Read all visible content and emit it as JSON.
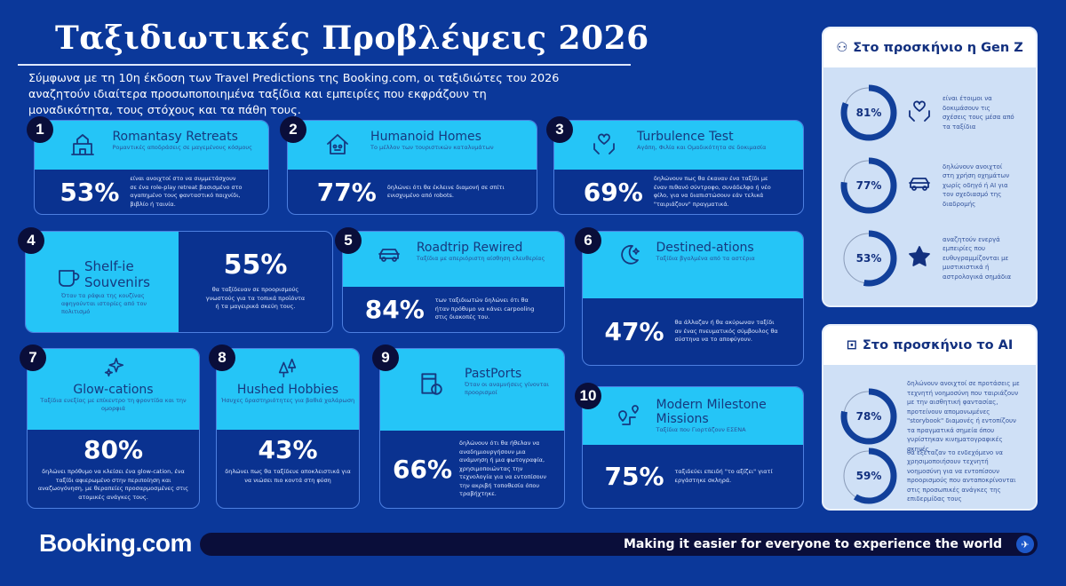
{
  "header": {
    "title": "Ταξιδιωτικές Προβλέψεις 2026",
    "intro": "Σύμφωνα με τη 10η έκδοση των Travel Predictions της Booking.com, οι ταξιδιώτες του 2026 αναζητούν ιδιαίτερα προσωποποιημένα ταξίδια και εμπειρίες που εκφράζουν τη μοναδικότητα, τους στόχους και τα πάθη τους."
  },
  "colors": {
    "background": "#0b389a",
    "card_top": "#25c5f7",
    "card_bottom": "#0a3290",
    "badge": "#0a0e3a"
  },
  "trends": [
    {
      "number": "1",
      "title": "Romantasy Retreats",
      "subtitle": "Ρομαντικές αποδράσεις σε μαγεμένους κόσμους",
      "percent": "53%",
      "value": 53,
      "text": "είναι ανοιχτοί στο να συμμετάσχουν σε ένα role-play retreat βασισμένο στο αγαπημένο τους φανταστικό παιχνίδι, βιβλίο ή ταινία.",
      "icon": "castle-icon"
    },
    {
      "number": "2",
      "title": "Humanoid Homes",
      "subtitle": "Το μέλλον των τουριστικών καταλυμάτων",
      "percent": "77%",
      "value": 77,
      "text": "δηλώνει ότι θα έκλεινε διαμονή σε σπίτι ενισχυμένο από robots.",
      "icon": "robot-house-icon"
    },
    {
      "number": "3",
      "title": "Turbulence Test",
      "subtitle": "Αγάπη, Φιλία και Ομαδικότητα σε δοκιμασία",
      "percent": "69%",
      "value": 69,
      "text": "δηλώνουν πως θα έκαναν ένα ταξίδι με έναν πιθανό σύντροφο, συνάδελφο ή νέο φίλο, για να διαπιστώσουν εάν τελικά \"ταιριάζουν\" πραγματικά.",
      "icon": "heart-hands-icon"
    },
    {
      "number": "4",
      "title": "Shelf-ie Souvenirs",
      "subtitle": "Όταν τα ράφια της κουζίνας αφηγούνται ιστορίες από τον πολιτισμό",
      "percent": "55%",
      "value": 55,
      "text": "θα ταξίδευαν σε προορισμούς γνωστούς για τα τοπικά προϊόντα ή τα μαγειρικά σκεύη τους.",
      "icon": "mug-icon"
    },
    {
      "number": "5",
      "title": "Roadtrip Rewired",
      "subtitle": "Ταξίδια με απεριόριστη αίσθηση ελευθερίας",
      "percent": "84%",
      "value": 84,
      "text": "των ταξιδιωτών δηλώνει ότι θα ήταν πρόθυμο να κάνει carpooling στις διακοπές του.",
      "icon": "car-icon"
    },
    {
      "number": "6",
      "title": "Destined-ations",
      "subtitle": "Ταξίδια βγαλμένα από τα αστέρια",
      "percent": "47%",
      "value": 47,
      "text": "θα άλλαζαν ή θα ακύρωναν ταξίδι αν ένας πνευματικός σύμβουλος θα σύστηνα να το αποφύγουν.",
      "icon": "moon-stars-icon"
    },
    {
      "number": "7",
      "title": "Glow-cations",
      "subtitle": "Ταξίδια ευεξίας με επίκεντρο τη φροντίδα και την ομορφιά",
      "percent": "80%",
      "value": 80,
      "text": "δηλώνει πρόθυμο να κλείσει ένα glow-cation, ένα ταξίδι αφιερωμένο στην περιποίηση και αναζωογόνηση, με θεραπείες προσαρμοσμένες στις ατομικές ανάγκες τους.",
      "icon": "sparkles-icon"
    },
    {
      "number": "8",
      "title": "Hushed Hobbies",
      "subtitle": "Ήσυχες δραστηριότητες για βαθιά χαλάρωση",
      "percent": "43%",
      "value": 43,
      "text": "δηλώνει πως θα ταξίδευε αποκλειστικά για να νιώσει πιο κοντά στη φύση",
      "icon": "trees-icon"
    },
    {
      "number": "9",
      "title": "PastPorts",
      "subtitle": "Όταν οι αναμνήσεις γίνονται προορισμοί",
      "percent": "66%",
      "value": 66,
      "text": "δηλώνουν ότι θα ήθελαν να αναδημιουργήσουν μια ανάμνηση ή μια φωτογραφία, χρησιμοποιώντας την τεχνολογία για να εντοπίσουν την ακριβή τοποθεσία όπου τραβήχτηκε.",
      "icon": "passport-icon"
    },
    {
      "number": "10",
      "title": "Modern Milestone Missions",
      "subtitle": "Ταξίδια που Γιορτάζουν ΕΣΕΝΑ",
      "percent": "75%",
      "value": 75,
      "text": "ταξιδεύει επειδή \"το αξίζει\" γιατί εργάστηκε σκληρά.",
      "icon": "route-pins-icon"
    }
  ],
  "genz": {
    "title": "Στο προσκήνιο η Gen Z",
    "icon": "people-icon",
    "items": [
      {
        "percent": "81%",
        "value": 81,
        "text": "είναι έτοιμοι να δοκιμάσουν τις σχέσεις τους μέσα από τα ταξίδια",
        "icon": "heart-hands-icon"
      },
      {
        "percent": "77%",
        "value": 77,
        "text": "δηλώνουν ανοιχτοί στη χρήση οχημάτων χωρίς οδηγό ή AI για τον σχεδιασμό της διαδρομής",
        "icon": "car-icon"
      },
      {
        "percent": "53%",
        "value": 53,
        "text": "αναζητούν ενεργά εμπειρίες που ευθυγραμμίζονται με μυστικιστικά ή αστρολογικά σημάδια",
        "icon": "star-icon"
      }
    ]
  },
  "ai": {
    "title": "Στο προσκήνιο το AI",
    "icon": "robot-icon",
    "items": [
      {
        "percent": "78%",
        "value": 78,
        "text": "δηλώνουν ανοιχτοί σε προτάσεις με τεχνητή νοημοσύνη που ταιριάζουν με την αισθητική φαντασίας, προτείνουν απομονωμένες \"storybook\" διαμονές ή εντοπίζουν τα πραγματικά σημεία όπου γυρίστηκαν κινηματογραφικές σκηνές"
      },
      {
        "percent": "59%",
        "value": 59,
        "text": "θα εξέταζαν το ενδεχόμενο να χρησιμοποιήσουν τεχνητή νοημοσύνη για να εντοπίσουν προορισμούς που ανταποκρίνονται στις προσωπικές ανάγκες της επιδερμίδας τους"
      }
    ]
  },
  "footer": {
    "logo": "Booking.com",
    "tagline": "Making it easier for everyone to experience the world",
    "icon": "plane-icon"
  }
}
